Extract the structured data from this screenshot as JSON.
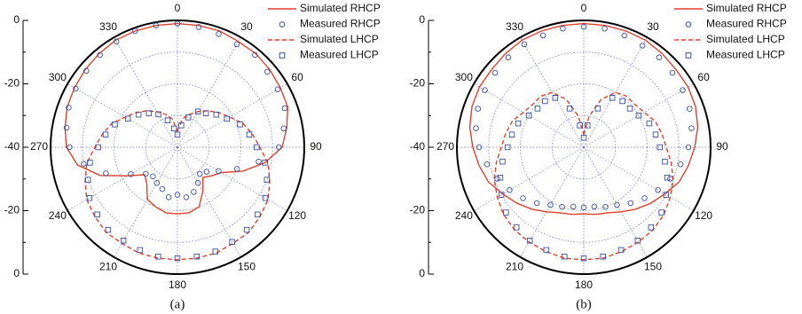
{
  "chart_data": [
    {
      "type": "polar",
      "label": "(a)",
      "rlim": [
        -40,
        0
      ],
      "rticks": [
        -40,
        -20,
        0
      ],
      "rminorticks": [
        -30,
        -10
      ],
      "thetaticks": [
        0,
        30,
        60,
        90,
        120,
        150,
        180,
        210,
        240,
        270,
        300,
        330
      ],
      "legend": "upper right",
      "theta": [
        0,
        10,
        20,
        30,
        40,
        50,
        60,
        70,
        80,
        90,
        100,
        110,
        120,
        130,
        140,
        150,
        160,
        170,
        180,
        190,
        200,
        210,
        220,
        230,
        240,
        250,
        260,
        270,
        280,
        290,
        300,
        310,
        320,
        330,
        340,
        350
      ],
      "series": [
        {
          "name": "Simulated RHCP",
          "color": "#e0412c",
          "style": "solid",
          "values": [
            -1,
            -1,
            -1,
            -1.5,
            -1.5,
            -2,
            -2.5,
            -3,
            -5,
            -7,
            -12,
            -18,
            -24,
            -26,
            -27.5,
            -24,
            -20,
            -19,
            -19,
            -19,
            -20,
            -21,
            -25,
            -26.5,
            -22,
            -14,
            -8,
            -5,
            -4,
            -3,
            -2.5,
            -2,
            -1.5,
            -1,
            -1,
            -1
          ]
        },
        {
          "name": "Measured RHCP",
          "color": "#3a4fa0",
          "style": "circle",
          "values": [
            -1,
            -1.5,
            -2,
            -2.5,
            -2,
            -3,
            -3.5,
            -4,
            -6,
            -8,
            -14,
            -20,
            -25,
            -28,
            -29,
            -27,
            -25,
            -24,
            -25,
            -24,
            -26,
            -27,
            -28,
            -27,
            -23,
            -16,
            -10,
            -6,
            -4.5,
            -3.5,
            -3,
            -2.5,
            -2,
            -1.5,
            -1,
            -1
          ]
        },
        {
          "name": "Simulated LHCP",
          "color": "#e0412c",
          "style": "dashed",
          "values": [
            -35,
            -31,
            -29,
            -27,
            -25,
            -23,
            -21,
            -18,
            -16,
            -14,
            -11,
            -9,
            -7,
            -6,
            -5,
            -5,
            -4.5,
            -4.5,
            -4.5,
            -4.5,
            -4.5,
            -5,
            -5,
            -6,
            -7,
            -9,
            -11,
            -14,
            -16,
            -18,
            -21,
            -23,
            -25,
            -27,
            -29,
            -31
          ]
        },
        {
          "name": "Measured LHCP",
          "color": "#3a4fa0",
          "style": "square",
          "values": [
            -36,
            -33,
            -30,
            -27,
            -26,
            -24,
            -22,
            -19,
            -17,
            -15,
            -12,
            -10,
            -8,
            -7,
            -6,
            -5.5,
            -5,
            -5,
            -5,
            -5,
            -5.5,
            -6,
            -6,
            -7,
            -8,
            -10,
            -12,
            -15,
            -17,
            -19,
            -22,
            -24,
            -26,
            -28,
            -31,
            -34
          ]
        }
      ]
    },
    {
      "type": "polar",
      "label": "(b)",
      "rlim": [
        -40,
        0
      ],
      "rticks": [
        -40,
        -20,
        0
      ],
      "rminorticks": [
        -30,
        -10
      ],
      "thetaticks": [
        0,
        30,
        60,
        90,
        120,
        150,
        180,
        210,
        240,
        270,
        300,
        330
      ],
      "legend": "upper right",
      "theta": [
        0,
        10,
        20,
        30,
        40,
        50,
        60,
        70,
        80,
        90,
        100,
        110,
        120,
        130,
        140,
        150,
        160,
        170,
        180,
        190,
        200,
        210,
        220,
        230,
        240,
        250,
        260,
        270,
        280,
        290,
        300,
        310,
        320,
        330,
        340,
        350
      ],
      "series": [
        {
          "name": "Simulated RHCP",
          "color": "#e0412c",
          "style": "solid",
          "values": [
            -1,
            -1,
            -1,
            -1,
            -1.5,
            -2,
            -2,
            -2.5,
            -3.5,
            -5,
            -6.5,
            -8,
            -10.5,
            -12.5,
            -14.5,
            -16.5,
            -18,
            -18.5,
            -19,
            -18.5,
            -18,
            -16.5,
            -14.5,
            -12.5,
            -10.5,
            -8,
            -6.5,
            -5,
            -3.5,
            -2.5,
            -2,
            -2,
            -1.5,
            -1,
            -1,
            -1
          ]
        },
        {
          "name": "Measured RHCP",
          "color": "#3a4fa0",
          "style": "circle",
          "values": [
            -2,
            -2,
            -2.5,
            -3,
            -3,
            -3.5,
            -4,
            -4.5,
            -5.5,
            -7,
            -9,
            -11,
            -13,
            -15,
            -17,
            -19,
            -20,
            -21,
            -21,
            -21,
            -20,
            -19,
            -17,
            -15,
            -13,
            -11,
            -9,
            -7,
            -5.5,
            -4.5,
            -4,
            -3.5,
            -3,
            -2.5,
            -2.5,
            -2
          ]
        },
        {
          "name": "Simulated LHCP",
          "color": "#e0412c",
          "style": "dashed",
          "values": [
            -36,
            -30,
            -24,
            -20,
            -19,
            -19,
            -18,
            -16,
            -15,
            -14,
            -12,
            -10,
            -8.5,
            -7,
            -6,
            -5.5,
            -5,
            -4.5,
            -4.5,
            -4.5,
            -5,
            -5.5,
            -6,
            -7,
            -8.5,
            -10,
            -12,
            -14,
            -15,
            -16,
            -18,
            -19,
            -19,
            -20,
            -24,
            -30
          ]
        },
        {
          "name": "Measured LHCP",
          "color": "#3a4fa0",
          "style": "square",
          "values": [
            -37,
            -33,
            -27,
            -22,
            -21,
            -21,
            -20,
            -18,
            -17,
            -16,
            -14,
            -12,
            -10,
            -8,
            -7,
            -6,
            -5.5,
            -5,
            -5,
            -5,
            -5.5,
            -6,
            -7,
            -8,
            -10,
            -12,
            -14,
            -16,
            -17,
            -18,
            -20,
            -21,
            -21,
            -22,
            -27,
            -33
          ]
        }
      ]
    }
  ]
}
